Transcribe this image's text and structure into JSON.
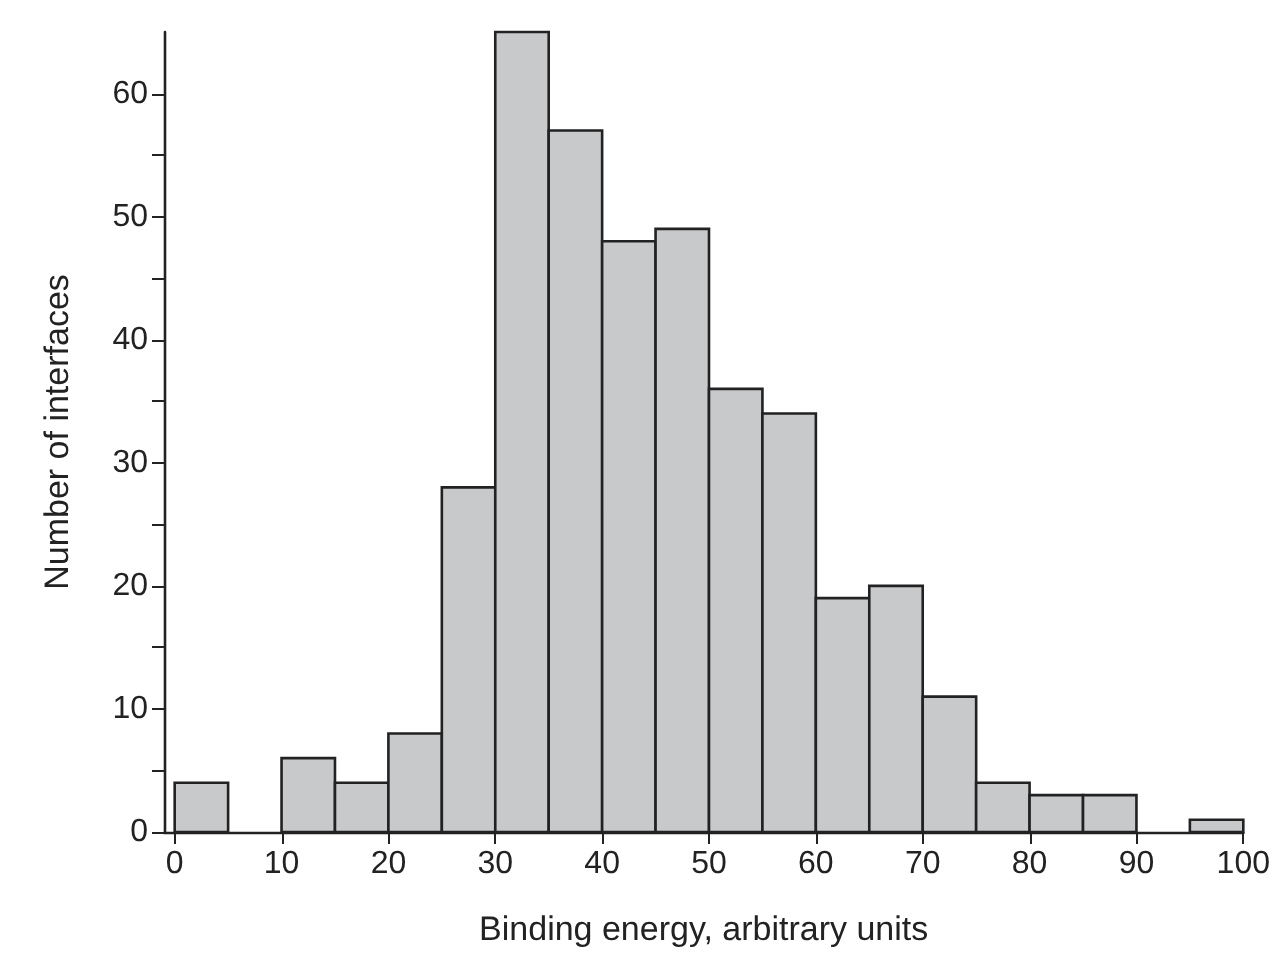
{
  "chart_data": {
    "type": "histogram",
    "xlabel": "Binding energy, arbitrary units",
    "ylabel": "Number of interfaces",
    "bins": [
      0,
      5,
      10,
      15,
      20,
      25,
      30,
      35,
      40,
      45,
      50,
      55,
      60,
      65,
      70,
      75,
      80,
      85,
      90,
      95,
      100
    ],
    "values": [
      4,
      0,
      6,
      4,
      8,
      28,
      65,
      57,
      48,
      49,
      36,
      34,
      19,
      20,
      11,
      4,
      3,
      3,
      0,
      1
    ],
    "color": "#c8c9cb",
    "xlim": [
      -1,
      100
    ],
    "xticks": [
      0,
      10,
      20,
      30,
      40,
      50,
      60,
      70,
      80,
      90,
      100
    ],
    "ylim": [
      0,
      65
    ],
    "yticks": [
      0,
      {
        "value": 5,
        "label": null
      },
      10,
      {
        "value": 15,
        "label": null
      },
      20,
      {
        "value": 25,
        "label": null
      },
      30,
      {
        "value": 35,
        "label": null
      },
      40,
      {
        "value": 45,
        "label": null
      },
      50,
      {
        "value": 55,
        "label": null
      },
      60
    ],
    "grid": false
  }
}
